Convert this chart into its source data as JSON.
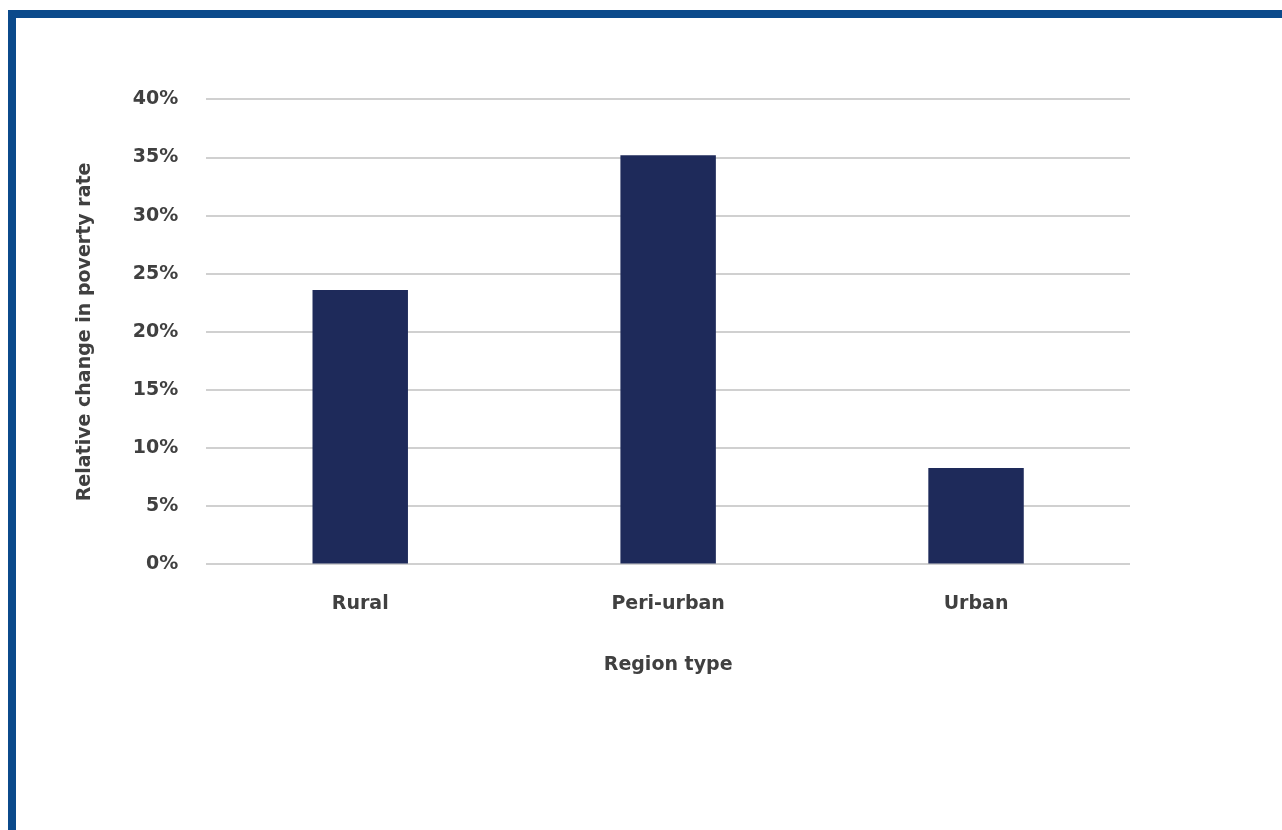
{
  "chart_data": {
    "type": "bar",
    "xlabel": "Region type",
    "ylabel": "Relative change in poverty rate",
    "categories": [
      "Rural",
      "Peri-urban",
      "Urban"
    ],
    "values": [
      23.6,
      35.2,
      8.3
    ],
    "color": "#1e2a5a",
    "ylim": [
      0,
      40
    ],
    "yticks": [
      {
        "value": 0,
        "label": "0%"
      },
      {
        "value": 5,
        "label": "5%"
      },
      {
        "value": 10,
        "label": "10%"
      },
      {
        "value": 15,
        "label": "15%"
      },
      {
        "value": 20,
        "label": "20%"
      },
      {
        "value": 25,
        "label": "25%"
      },
      {
        "value": 30,
        "label": "30%"
      },
      {
        "value": 35,
        "label": "35%"
      },
      {
        "value": 40,
        "label": "40%"
      }
    ],
    "grid": "y",
    "legend": false
  }
}
